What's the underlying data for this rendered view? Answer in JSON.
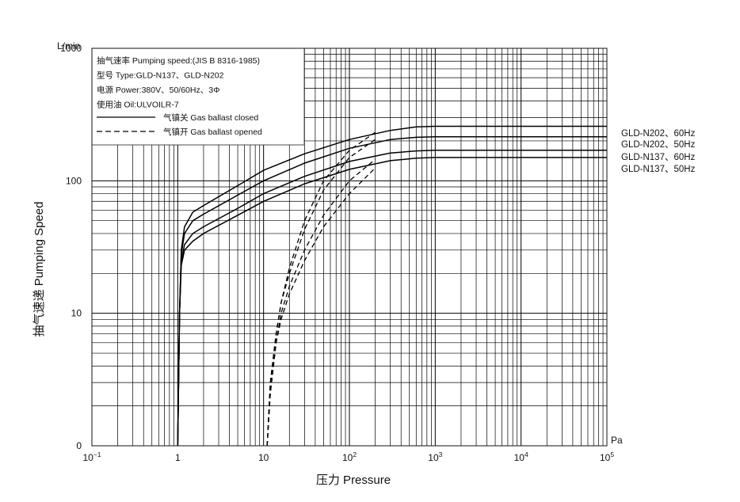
{
  "chart_data": {
    "type": "line",
    "x_scale": "log",
    "y_scale": "log",
    "xlim": [
      0.1,
      100000
    ],
    "ylim": [
      1,
      1000
    ],
    "xlabel": "压力 Pressure",
    "ylabel": "抽气速递 Pumping Speed",
    "x_unit": "Pa",
    "y_unit": "L/min",
    "x_ticks": [
      {
        "value": 0.1,
        "base": "10",
        "exp": "−1"
      },
      {
        "value": 1,
        "base": "1",
        "exp": ""
      },
      {
        "value": 10,
        "base": "10",
        "exp": ""
      },
      {
        "value": 100,
        "base": "10",
        "exp": "2"
      },
      {
        "value": 1000,
        "base": "10",
        "exp": "3"
      },
      {
        "value": 10000,
        "base": "10",
        "exp": "4"
      },
      {
        "value": 100000,
        "base": "10",
        "exp": "5"
      }
    ],
    "y_ticks": [
      {
        "value": 1,
        "label": "0"
      },
      {
        "value": 10,
        "label": "10"
      },
      {
        "value": 100,
        "label": "100"
      },
      {
        "value": 1000,
        "label": "1000"
      }
    ],
    "grid": true,
    "info_lines": [
      "抽气速率 Pumping speed:(JIS B 8316-1985)",
      "型号 Type:GLD-N137、GLD-N202",
      "电源 Power:380V、50/60Hz、3Φ",
      "使用油 Oil:ULVOILR-7"
    ],
    "legend": [
      {
        "style": "solid",
        "label": "气镇关 Gas ballast closed"
      },
      {
        "style": "dashed",
        "label": "气镇开 Gas ballast opened"
      }
    ],
    "series": [
      {
        "name": "GLD-N202、60Hz",
        "closed": [
          [
            1.0,
            1.0
          ],
          [
            1.05,
            10
          ],
          [
            1.1,
            30
          ],
          [
            1.2,
            45
          ],
          [
            1.5,
            58
          ],
          [
            2,
            65
          ],
          [
            5,
            92
          ],
          [
            10,
            120
          ],
          [
            30,
            160
          ],
          [
            100,
            205
          ],
          [
            300,
            240
          ],
          [
            600,
            255
          ],
          [
            1000,
            258
          ],
          [
            100000,
            258
          ]
        ],
        "opened": [
          [
            11,
            1.0
          ],
          [
            12,
            3
          ],
          [
            14,
            7
          ],
          [
            16,
            12
          ],
          [
            20,
            22
          ],
          [
            30,
            50
          ],
          [
            50,
            100
          ],
          [
            100,
            170
          ],
          [
            200,
            232
          ]
        ]
      },
      {
        "name": "GLD-N202、50Hz",
        "closed": [
          [
            1.0,
            1.0
          ],
          [
            1.05,
            10
          ],
          [
            1.1,
            28
          ],
          [
            1.2,
            40
          ],
          [
            1.5,
            50
          ],
          [
            2,
            56
          ],
          [
            5,
            78
          ],
          [
            10,
            100
          ],
          [
            30,
            136
          ],
          [
            100,
            176
          ],
          [
            300,
            205
          ],
          [
            600,
            213
          ],
          [
            1000,
            215
          ],
          [
            100000,
            215
          ]
        ],
        "opened": [
          [
            11,
            1.0
          ],
          [
            12,
            3
          ],
          [
            14,
            7
          ],
          [
            16,
            12
          ],
          [
            20,
            20
          ],
          [
            30,
            43
          ],
          [
            50,
            85
          ],
          [
            100,
            150
          ],
          [
            200,
            205
          ]
        ]
      },
      {
        "name": "GLD-N137、60Hz",
        "closed": [
          [
            1.0,
            1.0
          ],
          [
            1.05,
            10
          ],
          [
            1.1,
            25
          ],
          [
            1.2,
            33
          ],
          [
            1.5,
            40
          ],
          [
            2,
            45
          ],
          [
            5,
            62
          ],
          [
            10,
            80
          ],
          [
            30,
            108
          ],
          [
            100,
            140
          ],
          [
            300,
            162
          ],
          [
            600,
            168
          ],
          [
            1000,
            170
          ],
          [
            100000,
            170
          ]
        ],
        "opened": [
          [
            11,
            1.0
          ],
          [
            12,
            2.5
          ],
          [
            14,
            6
          ],
          [
            16,
            10
          ],
          [
            20,
            16
          ],
          [
            30,
            30
          ],
          [
            50,
            55
          ],
          [
            100,
            100
          ],
          [
            200,
            145
          ]
        ]
      },
      {
        "name": "GLD-N137、50Hz",
        "closed": [
          [
            1.0,
            1.0
          ],
          [
            1.05,
            10
          ],
          [
            1.1,
            23
          ],
          [
            1.2,
            30
          ],
          [
            1.5,
            35
          ],
          [
            2,
            40
          ],
          [
            5,
            55
          ],
          [
            10,
            70
          ],
          [
            30,
            95
          ],
          [
            100,
            122
          ],
          [
            300,
            142
          ],
          [
            600,
            148
          ],
          [
            1000,
            150
          ],
          [
            100000,
            150
          ]
        ],
        "opened": [
          [
            11,
            1.0
          ],
          [
            12,
            2.5
          ],
          [
            14,
            6
          ],
          [
            16,
            9
          ],
          [
            20,
            14
          ],
          [
            30,
            25
          ],
          [
            50,
            45
          ],
          [
            100,
            80
          ],
          [
            200,
            125
          ]
        ]
      }
    ]
  }
}
